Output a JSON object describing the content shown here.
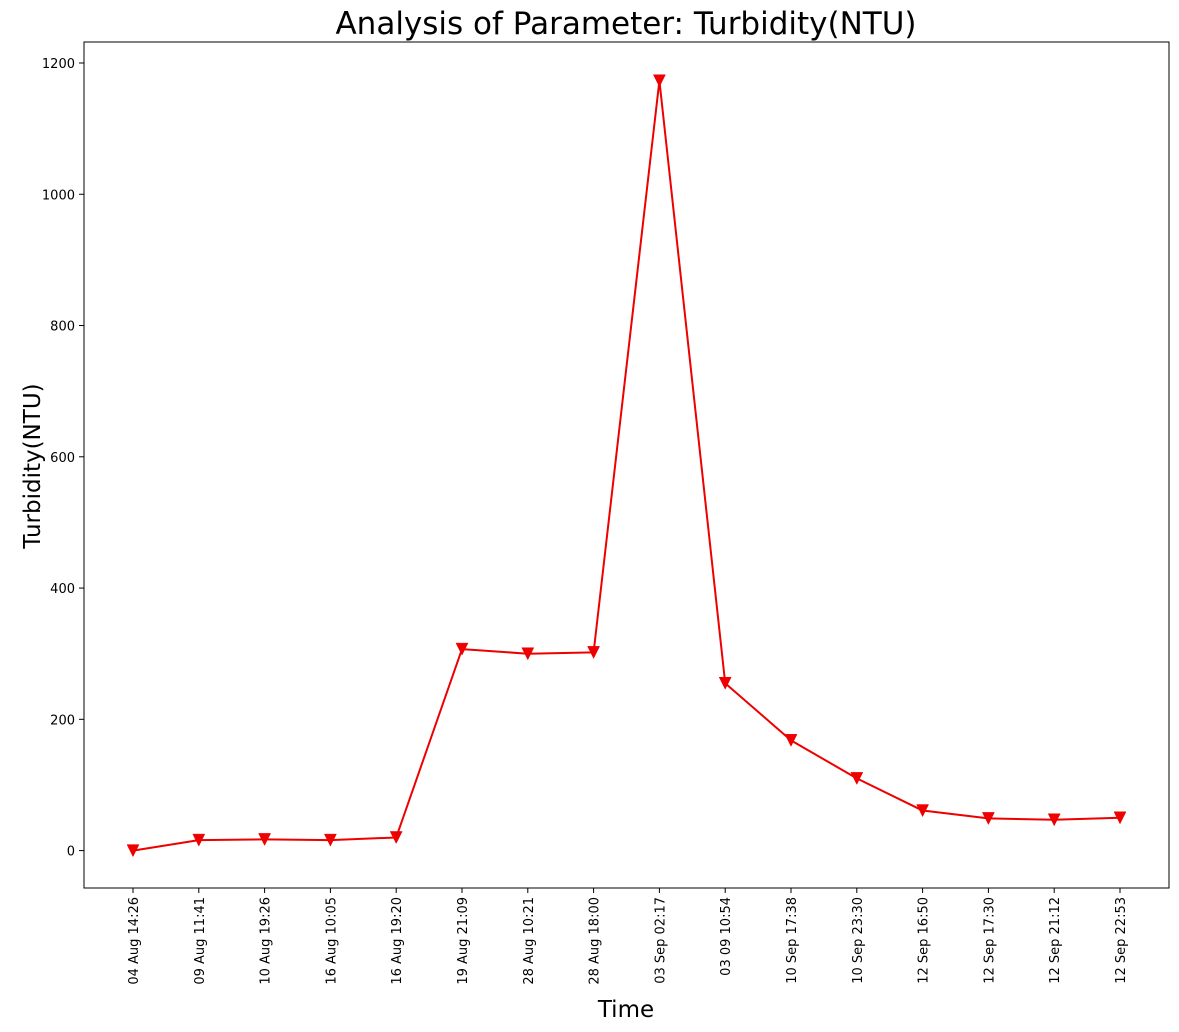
{
  "chart_data": {
    "type": "line",
    "title": "Analysis of Parameter: Turbidity(NTU)",
    "xlabel": "Time",
    "ylabel": "Turbidity(NTU)",
    "ylim": [
      -57,
      1232
    ],
    "yticks": [
      0,
      200,
      400,
      600,
      800,
      1000,
      1200
    ],
    "grid": false,
    "categories": [
      "04 Aug 14:26",
      "09 Aug 11:41",
      "10 Aug 19:26",
      "16 Aug 10:05",
      "16 Aug 19:20",
      "19 Aug 21:09",
      "28 Aug 10:21",
      "28 Aug 18:00",
      "03 Sep 02:17",
      "03 09 10:54",
      "10 Sep 17:38",
      "10 Sep 23:30",
      "12 Sep 16:50",
      "12 Sep 17:30",
      "12 Sep 21:12",
      "12 Sep 22:53"
    ],
    "series": [
      {
        "color": "#ee0000",
        "marker": "triangle-down",
        "values": [
          0,
          16,
          17,
          16,
          20,
          307,
          300,
          302,
          1173,
          255,
          168,
          110,
          61,
          49,
          47,
          50
        ]
      }
    ]
  }
}
